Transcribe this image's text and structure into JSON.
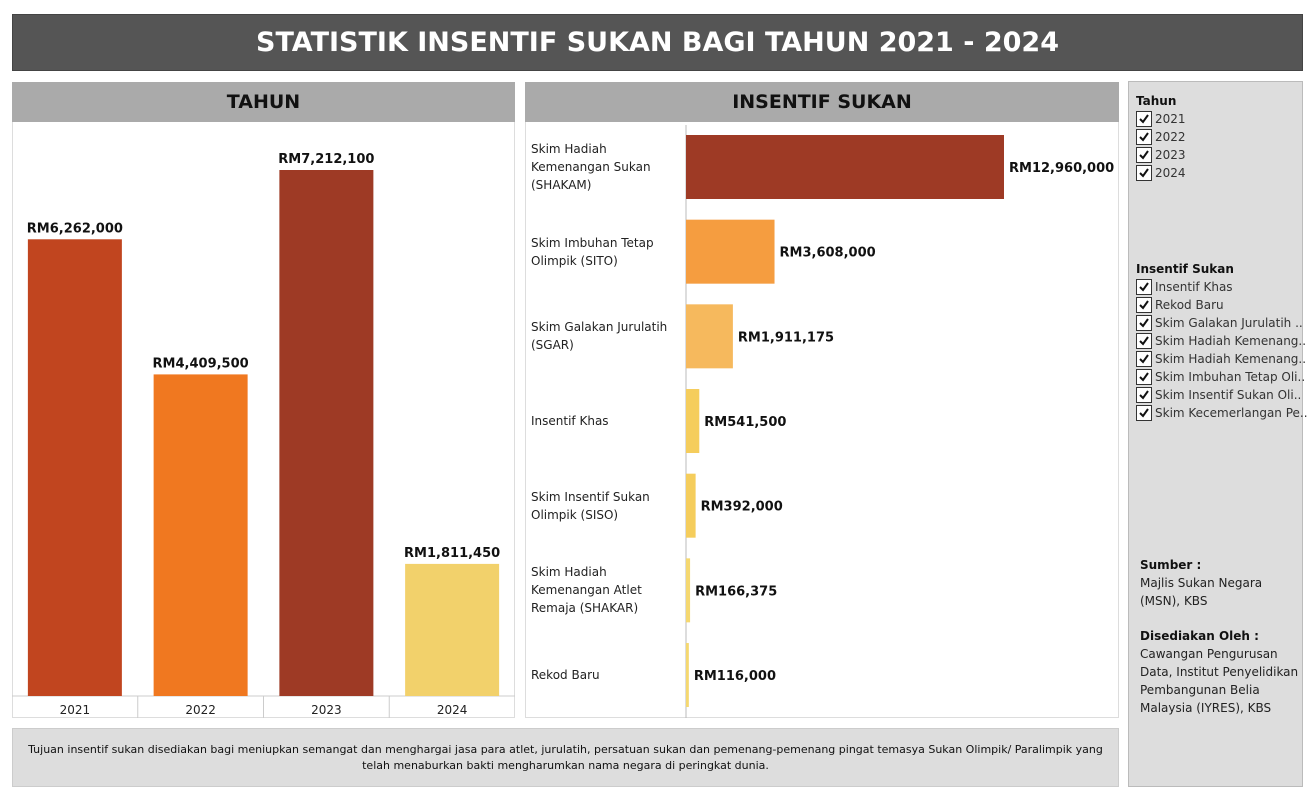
{
  "header": {
    "title": "STATISTIK INSENTIF SUKAN BAGI TAHUN 2021 - 2024"
  },
  "chart_data": [
    {
      "type": "bar",
      "title": "TAHUN",
      "categories": [
        "2021",
        "2022",
        "2023",
        "2024"
      ],
      "values": [
        6262000,
        4409500,
        7212100,
        1811450
      ],
      "value_labels": [
        "RM6,262,000",
        "RM4,409,500",
        "RM7,212,100",
        "RM1,811,450"
      ],
      "colors": [
        "#c1451f",
        "#f07820",
        "#9e3a25",
        "#f2d16b"
      ]
    },
    {
      "type": "barh",
      "title": "INSENTIF SUKAN",
      "categories": [
        "Skim Hadiah Kemenangan Sukan (SHAKAM)",
        "Skim Imbuhan Tetap Olimpik (SITO)",
        "Skim Galakan Jurulatih (SGAR)",
        "Insentif Khas",
        "Skim Insentif Sukan Olimpik (SISO)",
        "Skim Hadiah Kemenangan Atlet Remaja (SHAKAR)",
        "Rekod Baru"
      ],
      "values": [
        12960000,
        3608000,
        1911175,
        541500,
        392000,
        166375,
        116000
      ],
      "value_labels": [
        "RM12,960,000",
        "RM3,608,000",
        "RM1,911,175",
        "RM541,500",
        "RM392,000",
        "RM166,375",
        "RM116,000"
      ],
      "colors": [
        "#9e3a25",
        "#f59d40",
        "#f6b95d",
        "#f5cd5c",
        "#f5cd5c",
        "#f5d870",
        "#f5d870"
      ]
    }
  ],
  "filters": [
    {
      "title": "Tahun",
      "items": [
        "2021",
        "2022",
        "2023",
        "2024"
      ]
    },
    {
      "title": "Insentif Sukan",
      "items": [
        "Insentif Khas",
        "Rekod Baru",
        "Skim Galakan Jurulatih ..",
        "Skim Hadiah Kemenang..",
        "Skim Hadiah Kemenang..",
        "Skim Imbuhan Tetap Oli..",
        "Skim Insentif Sukan Oli..",
        "Skim Kecemerlangan Pe.."
      ]
    }
  ],
  "source": {
    "label": "Sumber :",
    "text": "Majlis Sukan Negara (MSN), KBS"
  },
  "prepared_by": {
    "label": "Disediakan Oleh :",
    "text": "Cawangan Pengurusan Data, Institut Penyelidikan Pembangunan Belia Malaysia (IYRES), KBS"
  },
  "note": "Tujuan insentif sukan disediakan bagi meniupkan semangat dan menghargai jasa para atlet, jurulatih, persatuan sukan dan pemenang-pemenang pingat temasya Sukan Olimpik/ Paralimpik yang telah menaburkan bakti mengharumkan nama negara di peringkat dunia."
}
